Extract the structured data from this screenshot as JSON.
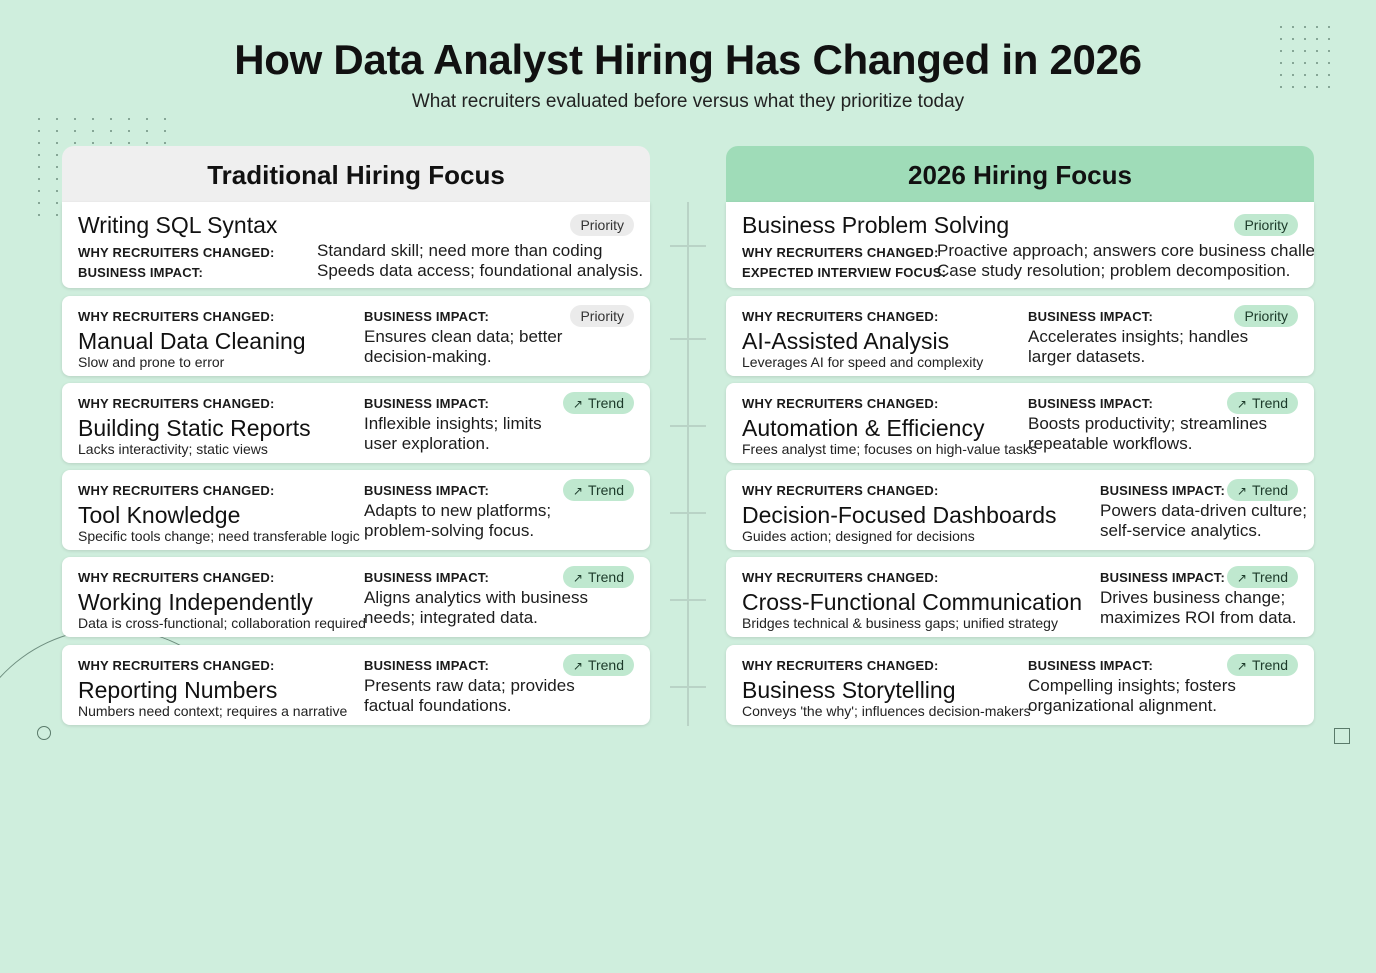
{
  "title": "How Data Analyst Hiring Has Changed in 2026",
  "subtitle": "What recruiters evaluated before versus what they prioritize today",
  "colors": {
    "background": "#cfeedd",
    "accent": "#9fdcb8",
    "badge_green": "#bfe8cf",
    "badge_gray": "#ebebeb"
  },
  "left": {
    "header": "Traditional Hiring Focus",
    "cards": [
      {
        "title": "Writing SQL Syntax",
        "badge": "Priority",
        "row1_label": "WHY RECRUITERS CHANGED:",
        "row1_text": "Standard skill; need more than coding",
        "row2_label": "BUSINESS IMPACT:",
        "row2_text": "Speeds data access; foundational analysis."
      },
      {
        "why_label": "WHY RECRUITERS CHANGED:",
        "title": "Manual Data Cleaning",
        "sub": "Slow and prone to error",
        "impact_label": "BUSINESS IMPACT:",
        "impact_l1": "Ensures clean data; better",
        "impact_l2": "decision-making.",
        "badge": "Priority"
      },
      {
        "why_label": "WHY RECRUITERS CHANGED:",
        "title": "Building Static Reports",
        "sub": "Lacks interactivity; static views",
        "impact_label": "BUSINESS IMPACT:",
        "impact_l1": "Inflexible insights; limits",
        "impact_l2": "user exploration.",
        "badge": "Trend"
      },
      {
        "why_label": "WHY RECRUITERS CHANGED:",
        "title": "Tool Knowledge",
        "sub": "Specific tools change; need transferable logic",
        "impact_label": "BUSINESS IMPACT:",
        "impact_l1": "Adapts to new platforms;",
        "impact_l2": "problem-solving focus.",
        "badge": "Trend"
      },
      {
        "why_label": "WHY RECRUITERS CHANGED:",
        "title": "Working Independently",
        "sub": "Data is cross-functional; collaboration required",
        "impact_label": "BUSINESS IMPACT:",
        "impact_l1": "Aligns analytics with business",
        "impact_l2": "needs; integrated data.",
        "badge": "Trend"
      },
      {
        "why_label": "WHY RECRUITERS CHANGED:",
        "title": "Reporting Numbers",
        "sub": "Numbers need context; requires a narrative",
        "impact_label": "BUSINESS IMPACT:",
        "impact_l1": "Presents raw data; provides",
        "impact_l2": "factual foundations.",
        "badge": "Trend"
      }
    ]
  },
  "right": {
    "header": "2026 Hiring Focus",
    "cards": [
      {
        "title": "Business Problem Solving",
        "badge": "Priority",
        "row1_label": "WHY RECRUITERS CHANGED:",
        "row1_text": "Proactive approach; answers core business challenges",
        "row2_label": "EXPECTED INTERVIEW FOCUS:",
        "row2_text": "Case study resolution; problem decomposition."
      },
      {
        "why_label": "WHY RECRUITERS CHANGED:",
        "title": "AI-Assisted Analysis",
        "sub": "Leverages AI for speed and complexity",
        "impact_label": "BUSINESS IMPACT:",
        "impact_l1": "Accelerates insights; handles",
        "impact_l2": "larger datasets.",
        "badge": "Priority"
      },
      {
        "why_label": "WHY RECRUITERS CHANGED:",
        "title": "Automation & Efficiency",
        "sub": "Frees analyst time; focuses on high-value tasks",
        "impact_label": "BUSINESS IMPACT:",
        "impact_l1": "Boosts productivity; streamlines",
        "impact_l2": "repeatable workflows.",
        "badge": "Trend"
      },
      {
        "why_label": "WHY RECRUITERS CHANGED:",
        "title": "Decision-Focused Dashboards",
        "sub": "Guides action; designed for decisions",
        "impact_label": "BUSINESS IMPACT:",
        "impact_l1": "Powers data-driven culture;",
        "impact_l2": "self-service analytics.",
        "badge": "Trend"
      },
      {
        "why_label": "WHY RECRUITERS CHANGED:",
        "title": "Cross-Functional Communication",
        "sub": "Bridges technical & business gaps; unified strategy",
        "impact_label": "BUSINESS IMPACT:",
        "impact_l1": "Drives business change;",
        "impact_l2": "maximizes ROI from data.",
        "badge": "Trend"
      },
      {
        "why_label": "WHY RECRUITERS CHANGED:",
        "title": "Business Storytelling",
        "sub": "Conveys 'the why'; influences decision-makers",
        "impact_label": "BUSINESS IMPACT:",
        "impact_l1": "Compelling insights; fosters",
        "impact_l2": "organizational alignment.",
        "badge": "Trend"
      }
    ]
  }
}
